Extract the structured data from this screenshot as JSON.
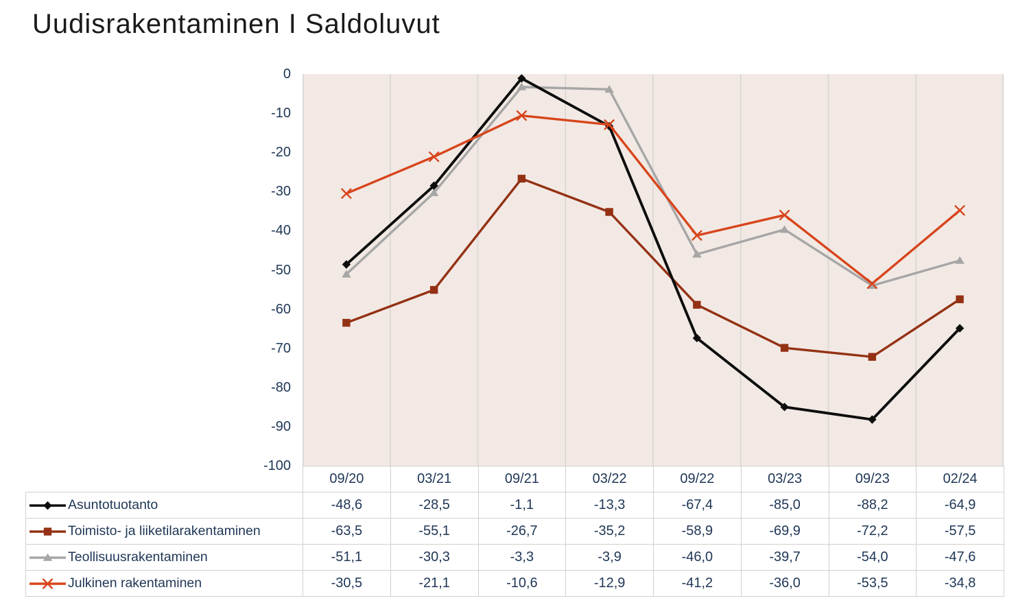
{
  "title": "Uudisrakentaminen I Saldoluvut",
  "colors": {
    "title_text": "#1a1a1a",
    "axis_text": "#1f3656",
    "plot_background": "#f2e9e4",
    "gridline": "#d7d4d2",
    "table_border": "#d2d0ce"
  },
  "chart_data": {
    "type": "line",
    "title": "Uudisrakentaminen I Saldoluvut",
    "categories": [
      "09/20",
      "03/21",
      "09/21",
      "03/22",
      "09/22",
      "03/23",
      "09/23",
      "02/24"
    ],
    "series": [
      {
        "name": "Asuntotuotanto",
        "color": "#0d0d0d",
        "marker": "diamond",
        "values": [
          -48.6,
          -28.5,
          -1.1,
          -13.3,
          -67.4,
          -85.0,
          -88.2,
          -64.9
        ]
      },
      {
        "name": "Toimisto- ja liiketilarakentaminen",
        "color": "#943114",
        "marker": "square",
        "values": [
          -63.5,
          -55.1,
          -26.7,
          -35.2,
          -58.9,
          -69.9,
          -72.2,
          -57.5
        ]
      },
      {
        "name": "Teollisuusrakentaminen",
        "color": "#a6a6a6",
        "marker": "triangle",
        "values": [
          -51.1,
          -30.3,
          -3.3,
          -3.9,
          -46.0,
          -39.7,
          -54.0,
          -47.6
        ]
      },
      {
        "name": "Julkinen rakentaminen",
        "color": "#d8451c",
        "marker": "x",
        "values": [
          -30.5,
          -21.1,
          -10.6,
          -12.9,
          -41.2,
          -36.0,
          -53.5,
          -34.8
        ]
      }
    ],
    "ylim": [
      -100,
      0
    ],
    "yticks": [
      "0",
      "-10",
      "-20",
      "-30",
      "-40",
      "-50",
      "-60",
      "-70",
      "-80",
      "-90",
      "-100"
    ],
    "grid": "vertical-only",
    "legend_position": "table-left",
    "draw_order": [
      2,
      1,
      0,
      3
    ]
  },
  "table": {
    "rows": [
      {
        "label": "Asuntotuotanto",
        "values": [
          "-48,6",
          "-28,5",
          "-1,1",
          "-13,3",
          "-67,4",
          "-85,0",
          "-88,2",
          "-64,9"
        ]
      },
      {
        "label": "Toimisto- ja liiketilarakentaminen",
        "values": [
          "-63,5",
          "-55,1",
          "-26,7",
          "-35,2",
          "-58,9",
          "-69,9",
          "-72,2",
          "-57,5"
        ]
      },
      {
        "label": "Teollisuusrakentaminen",
        "values": [
          "-51,1",
          "-30,3",
          "-3,3",
          "-3,9",
          "-46,0",
          "-39,7",
          "-54,0",
          "-47,6"
        ]
      },
      {
        "label": "Julkinen rakentaminen",
        "values": [
          "-30,5",
          "-21,1",
          "-10,6",
          "-12,9",
          "-41,2",
          "-36,0",
          "-53,5",
          "-34,8"
        ]
      }
    ]
  }
}
